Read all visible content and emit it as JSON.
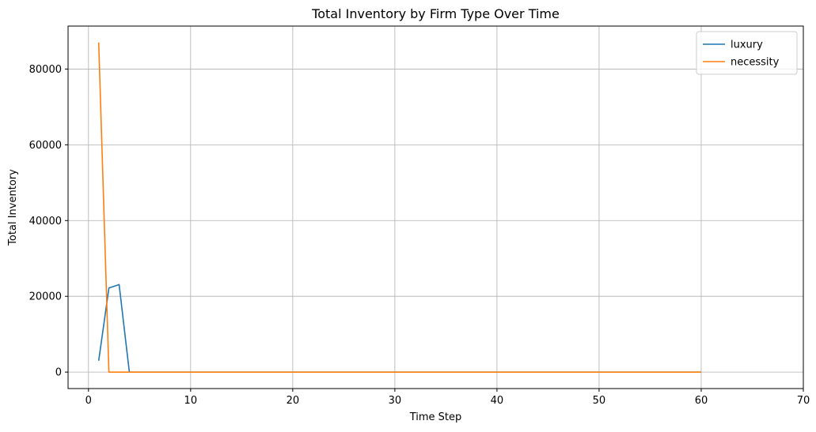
{
  "chart_data": {
    "type": "line",
    "title": "Total Inventory by Firm Type Over Time",
    "xlabel": "Time Step",
    "ylabel": "Total Inventory",
    "xlim": [
      -2,
      70
    ],
    "ylim": [
      -4350,
      91350
    ],
    "xticks": [
      0,
      10,
      20,
      30,
      40,
      50,
      60,
      70
    ],
    "yticks": [
      0,
      20000,
      40000,
      60000,
      80000
    ],
    "grid": true,
    "legend_position": "top-right",
    "series": [
      {
        "name": "luxury",
        "color": "#1f77b4",
        "x": [
          1,
          2,
          3,
          4,
          5,
          10,
          20,
          30,
          40,
          50,
          60
        ],
        "y": [
          3000,
          22200,
          23100,
          0,
          0,
          0,
          0,
          0,
          0,
          0,
          0
        ]
      },
      {
        "name": "necessity",
        "color": "#ff7f0e",
        "x": [
          1,
          2,
          3,
          4,
          5,
          10,
          20,
          30,
          40,
          50,
          60
        ],
        "y": [
          87000,
          0,
          0,
          0,
          0,
          0,
          0,
          0,
          0,
          0,
          0
        ]
      }
    ]
  }
}
